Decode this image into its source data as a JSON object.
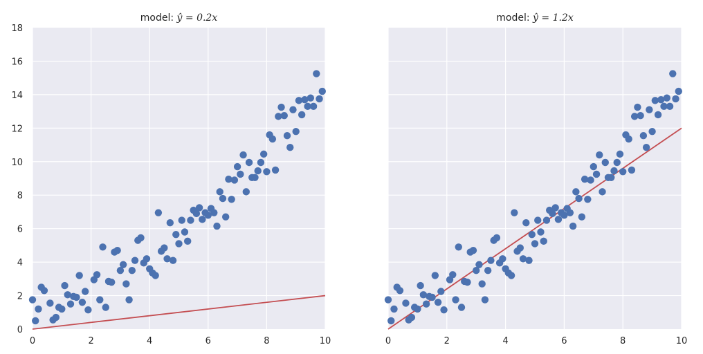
{
  "chart_data": [
    {
      "type": "scatter",
      "title_prefix": "model: ",
      "title_math": "ŷ = 0.2x",
      "xlim": [
        0,
        10
      ],
      "ylim": [
        0,
        18
      ],
      "xticks": [
        "0",
        "2",
        "4",
        "6",
        "8",
        "10"
      ],
      "yticks": [
        "0",
        "2",
        "4",
        "6",
        "8",
        "10",
        "12",
        "14",
        "16",
        "18"
      ],
      "grid": true,
      "line": {
        "slope": 0.2,
        "intercept": 0,
        "x": [
          0,
          10
        ],
        "color": "#c44e52"
      },
      "points_color": "#4c72b0"
    },
    {
      "type": "scatter",
      "title_prefix": "model: ",
      "title_math": "ŷ = 1.2x",
      "xlim": [
        0,
        10
      ],
      "ylim": [
        0,
        18
      ],
      "xticks": [
        "0",
        "2",
        "4",
        "6",
        "8",
        "10"
      ],
      "yticks": [],
      "grid": true,
      "line": {
        "slope": 1.2,
        "intercept": 0,
        "x": [
          0,
          10
        ],
        "color": "#c44e52"
      },
      "points_color": "#4c72b0"
    }
  ],
  "points": [
    [
      0.0,
      1.75
    ],
    [
      0.1,
      0.5
    ],
    [
      0.2,
      1.2
    ],
    [
      0.3,
      2.5
    ],
    [
      0.4,
      2.3
    ],
    [
      0.6,
      1.55
    ],
    [
      0.7,
      0.55
    ],
    [
      0.8,
      0.7
    ],
    [
      0.9,
      1.3
    ],
    [
      1.0,
      1.2
    ],
    [
      1.1,
      2.6
    ],
    [
      1.2,
      2.05
    ],
    [
      1.3,
      1.5
    ],
    [
      1.4,
      1.95
    ],
    [
      1.5,
      1.9
    ],
    [
      1.6,
      3.2
    ],
    [
      1.7,
      1.6
    ],
    [
      1.8,
      2.25
    ],
    [
      1.9,
      1.15
    ],
    [
      2.1,
      2.95
    ],
    [
      2.2,
      3.25
    ],
    [
      2.3,
      1.75
    ],
    [
      2.4,
      4.9
    ],
    [
      2.5,
      1.3
    ],
    [
      2.6,
      2.85
    ],
    [
      2.7,
      2.8
    ],
    [
      2.8,
      4.6
    ],
    [
      2.9,
      4.7
    ],
    [
      3.0,
      3.5
    ],
    [
      3.1,
      3.85
    ],
    [
      3.2,
      2.7
    ],
    [
      3.3,
      1.75
    ],
    [
      3.4,
      3.5
    ],
    [
      3.5,
      4.1
    ],
    [
      3.6,
      5.3
    ],
    [
      3.7,
      5.45
    ],
    [
      3.8,
      3.95
    ],
    [
      3.9,
      4.2
    ],
    [
      4.0,
      3.6
    ],
    [
      4.1,
      3.35
    ],
    [
      4.2,
      3.2
    ],
    [
      4.3,
      6.95
    ],
    [
      4.4,
      4.65
    ],
    [
      4.5,
      4.85
    ],
    [
      4.6,
      4.2
    ],
    [
      4.7,
      6.35
    ],
    [
      4.8,
      4.1
    ],
    [
      4.9,
      5.65
    ],
    [
      5.0,
      5.1
    ],
    [
      5.1,
      6.5
    ],
    [
      5.2,
      5.8
    ],
    [
      5.3,
      5.25
    ],
    [
      5.4,
      6.5
    ],
    [
      5.5,
      7.1
    ],
    [
      5.6,
      6.9
    ],
    [
      5.7,
      7.25
    ],
    [
      5.8,
      6.55
    ],
    [
      5.9,
      6.95
    ],
    [
      6.0,
      6.8
    ],
    [
      6.1,
      7.2
    ],
    [
      6.2,
      6.95
    ],
    [
      6.3,
      6.15
    ],
    [
      6.4,
      8.2
    ],
    [
      6.5,
      7.8
    ],
    [
      6.6,
      6.7
    ],
    [
      6.7,
      8.95
    ],
    [
      6.8,
      7.75
    ],
    [
      6.9,
      8.9
    ],
    [
      7.0,
      9.7
    ],
    [
      7.1,
      9.25
    ],
    [
      7.2,
      10.4
    ],
    [
      7.3,
      8.2
    ],
    [
      7.4,
      9.95
    ],
    [
      7.5,
      9.05
    ],
    [
      7.6,
      9.05
    ],
    [
      7.7,
      9.45
    ],
    [
      7.8,
      9.95
    ],
    [
      7.9,
      10.45
    ],
    [
      8.0,
      9.4
    ],
    [
      8.1,
      11.6
    ],
    [
      8.2,
      11.35
    ],
    [
      8.3,
      9.5
    ],
    [
      8.4,
      12.7
    ],
    [
      8.5,
      13.25
    ],
    [
      8.6,
      12.75
    ],
    [
      8.7,
      11.55
    ],
    [
      8.8,
      10.85
    ],
    [
      8.9,
      13.1
    ],
    [
      9.0,
      11.8
    ],
    [
      9.1,
      13.65
    ],
    [
      9.2,
      12.8
    ],
    [
      9.3,
      13.7
    ],
    [
      9.4,
      13.3
    ],
    [
      9.5,
      13.8
    ],
    [
      9.6,
      13.3
    ],
    [
      9.7,
      15.25
    ],
    [
      9.8,
      13.75
    ],
    [
      9.9,
      14.2
    ]
  ]
}
